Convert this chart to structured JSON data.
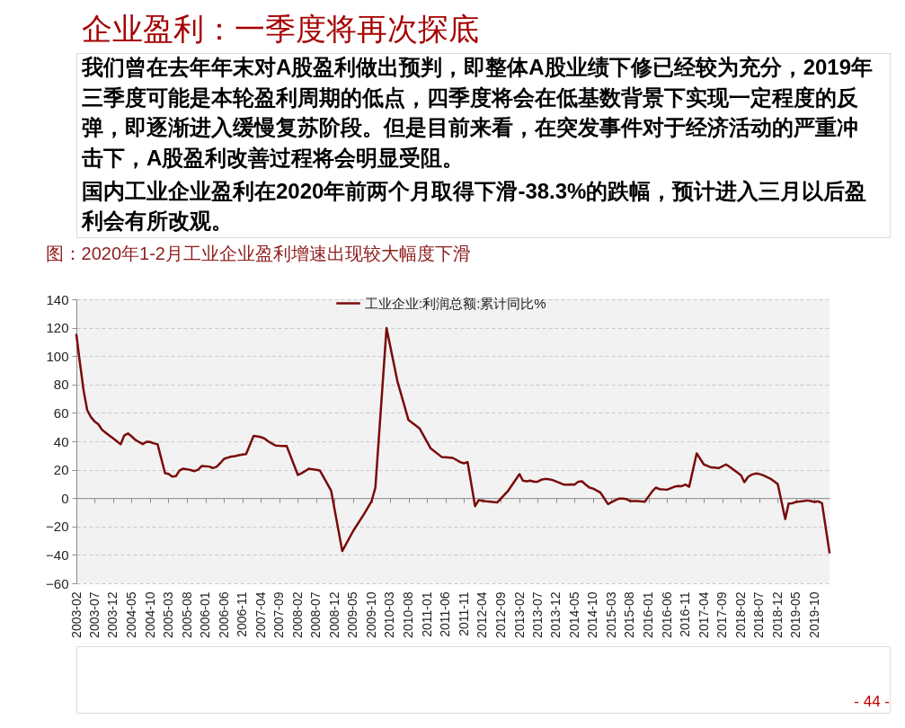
{
  "chart_data": {
    "type": "line",
    "title": "企业盈利：一季度将再次探底",
    "subtitle": "图：2020年1-2月工业企业盈利增速出现较大幅度下滑",
    "annotations": [
      "我们曾在去年年末对A股盈利做出预判，即整体A股业绩下修已经较为充分，2019年三季度可能是本轮盈利周期的低点，四季度将会在低基数背景下实现一定程度的反弹，即逐渐进入缓慢复苏阶段。但是目前来看，在突发事件对于经济活动的严重冲击下，A股盈利改善过程将会明显受阻。",
      "国内工业企业盈利在2020年前两个月取得下滑-38.3%的跌幅，预计进入三月以后盈利会有所改观。",
      "- 44 -"
    ],
    "x": [
      "2003-02",
      "2003-03",
      "2003-04",
      "2003-05",
      "2003-06",
      "2003-07",
      "2003-08",
      "2003-09",
      "2003-10",
      "2003-11",
      "2003-12",
      "2004-02",
      "2004-03",
      "2004-04",
      "2004-05",
      "2004-06",
      "2004-07",
      "2004-08",
      "2004-09",
      "2004-10",
      "2004-11",
      "2004-12",
      "2005-02",
      "2005-03",
      "2005-04",
      "2005-05",
      "2005-06",
      "2005-07",
      "2005-08",
      "2005-09",
      "2005-10",
      "2005-11",
      "2005-12",
      "2006-02",
      "2006-03",
      "2006-04",
      "2006-05",
      "2006-06",
      "2006-07",
      "2006-08",
      "2006-09",
      "2006-10",
      "2006-11",
      "2006-12",
      "2007-02",
      "2007-03",
      "2007-04",
      "2007-05",
      "2007-06",
      "2007-07",
      "2007-08",
      "2007-09",
      "2007-10",
      "2007-11",
      "2008-02",
      "2008-03",
      "2008-04",
      "2008-05",
      "2008-06",
      "2008-07",
      "2008-08",
      "2008-11",
      "2009-02",
      "2009-05",
      "2009-08",
      "2009-10",
      "2009-11",
      "2010-02",
      "2010-05",
      "2010-08",
      "2010-11",
      "2011-02",
      "2011-05",
      "2011-06",
      "2011-08",
      "2011-10",
      "2011-11",
      "2011-12",
      "2012-02",
      "2012-03",
      "2012-05",
      "2012-08",
      "2012-11",
      "2013-02",
      "2013-03",
      "2013-04",
      "2013-05",
      "2013-06",
      "2013-07",
      "2013-08",
      "2013-09",
      "2013-10",
      "2013-11",
      "2014-02",
      "2014-03",
      "2014-04",
      "2014-05",
      "2014-06",
      "2014-07",
      "2014-08",
      "2014-09",
      "2014-10",
      "2014-11",
      "2014-12",
      "2015-02",
      "2015-04",
      "2015-05",
      "2015-06",
      "2015-07",
      "2015-08",
      "2015-10",
      "2015-12",
      "2016-02",
      "2016-03",
      "2016-04",
      "2016-06",
      "2016-08",
      "2016-09",
      "2016-10",
      "2016-11",
      "2016-12",
      "2017-02",
      "2017-04",
      "2017-05",
      "2017-06",
      "2017-08",
      "2017-10",
      "2017-11",
      "2017-12",
      "2018-02",
      "2018-03",
      "2018-04",
      "2018-05",
      "2018-06",
      "2018-07",
      "2018-08",
      "2018-10",
      "2018-11",
      "2018-12",
      "2019-02",
      "2019-03",
      "2019-04",
      "2019-05",
      "2019-07",
      "2019-08",
      "2019-09",
      "2019-10",
      "2019-11",
      "2019-12",
      "2020-02"
    ],
    "series": [
      {
        "name": "工业企业:利润总额:累计同比%",
        "color": "#7a0a0a",
        "values": [
          115,
          96,
          76,
          62,
          57,
          54,
          52,
          48,
          46,
          44,
          42,
          38,
          44,
          45.5,
          43.5,
          41,
          39.5,
          38,
          39.7,
          39.5,
          38.5,
          38,
          17.5,
          17,
          15.2,
          15.4,
          19.5,
          20.7,
          20.3,
          19.7,
          19,
          20,
          22.6,
          22.2,
          21.1,
          22,
          24.5,
          27.5,
          28.5,
          29.2,
          29.6,
          30.2,
          30.7,
          31,
          43.8,
          43.5,
          43,
          42,
          40,
          38.5,
          37,
          36.8,
          36.7,
          36.6,
          16.3,
          17.5,
          19,
          20.7,
          20.3,
          19.9,
          19.4,
          5.3,
          -37.3,
          -23.3,
          -11,
          -2.1,
          7.4,
          119.7,
          82.5,
          55,
          49,
          34.9,
          29,
          28.8,
          28.3,
          25.4,
          24.5,
          25.4,
          -5.7,
          -1.5,
          -2.3,
          -3.1,
          5.3,
          16.9,
          12.3,
          11.8,
          12.3,
          11.5,
          11.5,
          13,
          13.5,
          13.3,
          12.7,
          9.5,
          9.5,
          9.6,
          9.5,
          11.6,
          11.8,
          9.5,
          7.4,
          6.7,
          5.3,
          3.8,
          -4.2,
          -1.5,
          -0.4,
          -0.3,
          -0.6,
          -2.1,
          -2.1,
          -2.5,
          4.8,
          7.4,
          6.3,
          5.9,
          8,
          8.5,
          8.4,
          9.5,
          8,
          31.5,
          23.7,
          22.7,
          21.6,
          21.1,
          23.7,
          22,
          20.1,
          16.1,
          11.2,
          15,
          16.5,
          17.3,
          17,
          16.2,
          13.7,
          11.8,
          9.9,
          -14.8,
          -3.8,
          -3.6,
          -2.7,
          -2.1,
          -1.7,
          -2.1,
          -2.7,
          -2.3,
          -3.6,
          -38.3
        ]
      }
    ],
    "xlim": [
      "2003-02",
      "2020-02"
    ],
    "xticks": [
      "2003-02",
      "2003-07",
      "2003-12",
      "2004-05",
      "2004-10",
      "2005-03",
      "2005-08",
      "2006-01",
      "2006-06",
      "2006-11",
      "2007-04",
      "2007-09",
      "2008-02",
      "2008-07",
      "2008-12",
      "2009-05",
      "2009-10",
      "2010-03",
      "2010-08",
      "2011-01",
      "2011-06",
      "2011-11",
      "2012-04",
      "2012-09",
      "2013-02",
      "2013-07",
      "2013-12",
      "2014-05",
      "2014-10",
      "2015-03",
      "2015-08",
      "2016-01",
      "2016-06",
      "2016-11",
      "2017-04",
      "2017-09",
      "2018-02",
      "2018-07",
      "2018-12",
      "2019-05",
      "2019-10"
    ],
    "ylim": [
      -60,
      140
    ],
    "yticks": [
      -60,
      -40,
      -20,
      0,
      20,
      40,
      60,
      80,
      100,
      120,
      140
    ],
    "grid": "y",
    "legend": "top",
    "line_style": "solid"
  }
}
